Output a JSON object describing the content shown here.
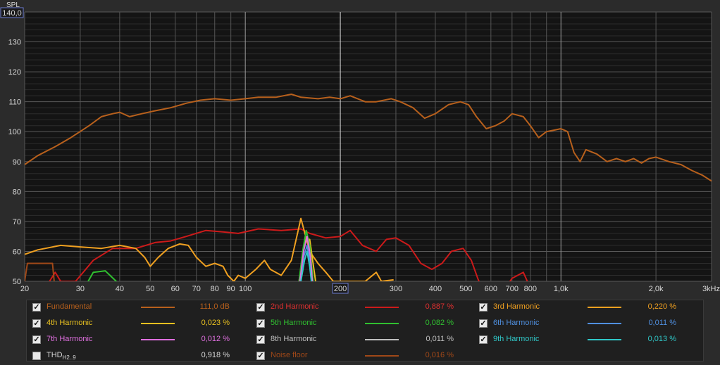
{
  "chart_data": {
    "type": "line",
    "ylabel": "SPL",
    "ymax_box": "140,0",
    "x_scale": "log",
    "xlim": [
      20,
      3000
    ],
    "ylim": [
      50,
      140
    ],
    "y_ticks": [
      "130",
      "120",
      "110",
      "100",
      "90",
      "80",
      "70",
      "60",
      "50"
    ],
    "y_tick_values": [
      130,
      120,
      110,
      100,
      90,
      80,
      70,
      60,
      50
    ],
    "x_ticks": [
      "20",
      "30",
      "40",
      "50",
      "60",
      "70",
      "80",
      "90",
      "100",
      "200",
      "300",
      "400",
      "500",
      "600",
      "700",
      "800",
      "1,0k",
      "2,0k",
      "3kHz"
    ],
    "x_tick_values": [
      20,
      30,
      40,
      50,
      60,
      70,
      80,
      90,
      100,
      200,
      300,
      400,
      500,
      600,
      700,
      800,
      1000,
      2000,
      3000
    ],
    "cursor_label": "200",
    "series": [
      {
        "name": "Fundamental",
        "color": "#b8601c",
        "points": [
          [
            20,
            89
          ],
          [
            22,
            92
          ],
          [
            25,
            95
          ],
          [
            28,
            98
          ],
          [
            32,
            102
          ],
          [
            35,
            105
          ],
          [
            38,
            106
          ],
          [
            40,
            106.5
          ],
          [
            43,
            105
          ],
          [
            47,
            106
          ],
          [
            52,
            107
          ],
          [
            58,
            108
          ],
          [
            65,
            109.5
          ],
          [
            72,
            110.5
          ],
          [
            80,
            111
          ],
          [
            90,
            110.5
          ],
          [
            100,
            111
          ],
          [
            110,
            111.5
          ],
          [
            125,
            111.5
          ],
          [
            140,
            112.5
          ],
          [
            150,
            111.5
          ],
          [
            170,
            111
          ],
          [
            185,
            111.5
          ],
          [
            200,
            111
          ],
          [
            215,
            112
          ],
          [
            240,
            110
          ],
          [
            260,
            110
          ],
          [
            290,
            111
          ],
          [
            310,
            110
          ],
          [
            340,
            108
          ],
          [
            370,
            104.5
          ],
          [
            400,
            106
          ],
          [
            440,
            109
          ],
          [
            480,
            110
          ],
          [
            510,
            109
          ],
          [
            540,
            105
          ],
          [
            580,
            101
          ],
          [
            620,
            102
          ],
          [
            660,
            103.5
          ],
          [
            700,
            106
          ],
          [
            760,
            105
          ],
          [
            800,
            102
          ],
          [
            850,
            98
          ],
          [
            900,
            100
          ],
          [
            950,
            100.5
          ],
          [
            1000,
            101
          ],
          [
            1050,
            100
          ],
          [
            1100,
            93
          ],
          [
            1150,
            90
          ],
          [
            1200,
            94
          ],
          [
            1300,
            92.5
          ],
          [
            1400,
            90
          ],
          [
            1500,
            91
          ],
          [
            1600,
            90
          ],
          [
            1700,
            91
          ],
          [
            1800,
            89.5
          ],
          [
            1900,
            91
          ],
          [
            2000,
            91.5
          ],
          [
            2200,
            90
          ],
          [
            2400,
            89
          ],
          [
            2600,
            87
          ],
          [
            2800,
            85.5
          ],
          [
            3000,
            83.5
          ]
        ]
      },
      {
        "name": "2nd Harmonic",
        "color": "#cc1a1a",
        "points": [
          [
            23,
            47
          ],
          [
            25,
            53
          ],
          [
            26,
            50
          ],
          [
            29,
            50
          ],
          [
            33,
            57
          ],
          [
            38,
            61
          ],
          [
            45,
            61
          ],
          [
            52,
            63
          ],
          [
            58,
            63.5
          ],
          [
            65,
            65
          ],
          [
            75,
            67
          ],
          [
            85,
            66.5
          ],
          [
            95,
            66
          ],
          [
            110,
            67.5
          ],
          [
            130,
            67
          ],
          [
            150,
            67.5
          ],
          [
            160,
            66
          ],
          [
            180,
            64.5
          ],
          [
            200,
            65
          ],
          [
            215,
            67
          ],
          [
            235,
            62
          ],
          [
            260,
            60
          ],
          [
            280,
            64
          ],
          [
            300,
            64.5
          ],
          [
            330,
            62
          ],
          [
            360,
            56
          ],
          [
            390,
            54
          ],
          [
            420,
            56
          ],
          [
            450,
            60
          ],
          [
            490,
            61
          ],
          [
            520,
            57
          ],
          [
            545,
            51
          ],
          [
            560,
            48
          ],
          [
            620,
            49
          ],
          [
            680,
            49
          ],
          [
            700,
            51
          ],
          [
            760,
            53
          ],
          [
            790,
            49
          ]
        ]
      },
      {
        "name": "3rd Harmonic",
        "color": "#f0a020",
        "points": [
          [
            20,
            59
          ],
          [
            22,
            60.5
          ],
          [
            26,
            62
          ],
          [
            30,
            61.5
          ],
          [
            35,
            61
          ],
          [
            40,
            62
          ],
          [
            45,
            61
          ],
          [
            48,
            58
          ],
          [
            50,
            55
          ],
          [
            53,
            58
          ],
          [
            57,
            61
          ],
          [
            62,
            62.5
          ],
          [
            66,
            62
          ],
          [
            70,
            58
          ],
          [
            75,
            55
          ],
          [
            80,
            56
          ],
          [
            85,
            55
          ],
          [
            88,
            52
          ],
          [
            92,
            50
          ],
          [
            95,
            52
          ],
          [
            100,
            51
          ],
          [
            108,
            54
          ],
          [
            115,
            57
          ],
          [
            120,
            54
          ],
          [
            130,
            52
          ],
          [
            140,
            57
          ],
          [
            150,
            71
          ],
          [
            160,
            60
          ],
          [
            170,
            56
          ],
          [
            180,
            53
          ],
          [
            190,
            50
          ],
          [
            240,
            50
          ],
          [
            260,
            53
          ],
          [
            270,
            50
          ],
          [
            295,
            50.5
          ]
        ]
      },
      {
        "name": "4th Harmonic",
        "color": "#e8c020",
        "points": [
          [
            148,
            50
          ],
          [
            152,
            58
          ],
          [
            155,
            64
          ],
          [
            160,
            64
          ],
          [
            163,
            58
          ],
          [
            167,
            50
          ]
        ]
      },
      {
        "name": "5th Harmonic",
        "color": "#30c030",
        "points": [
          [
            31,
            48
          ],
          [
            33,
            53
          ],
          [
            36,
            53.5
          ],
          [
            39,
            50
          ],
          [
            42,
            47
          ]
        ]
      },
      {
        "name": "5th Harmonic peak",
        "color": "#30c030",
        "points": [
          [
            148,
            50
          ],
          [
            152,
            60
          ],
          [
            156,
            67
          ],
          [
            160,
            62
          ],
          [
            164,
            50
          ]
        ]
      },
      {
        "name": "6th Harmonic",
        "color": "#5090e0",
        "points": [
          [
            149,
            50
          ],
          [
            153,
            58
          ],
          [
            157,
            62
          ],
          [
            161,
            56
          ],
          [
            163,
            50
          ]
        ]
      },
      {
        "name": "7th Harmonic",
        "color": "#e070e0",
        "points": [
          [
            149,
            50
          ],
          [
            153,
            60
          ],
          [
            157,
            65
          ],
          [
            161,
            58
          ],
          [
            163,
            50
          ]
        ]
      },
      {
        "name": "9th Harmonic",
        "color": "#30c8c8",
        "points": [
          [
            150,
            50
          ],
          [
            154,
            57
          ],
          [
            157,
            60
          ],
          [
            160,
            55
          ],
          [
            162,
            50
          ]
        ]
      },
      {
        "name": "Noise floor",
        "color": "#a04818",
        "points": [
          [
            20,
            50
          ],
          [
            20.4,
            56
          ],
          [
            24.5,
            56
          ],
          [
            24.8,
            50
          ]
        ]
      }
    ]
  },
  "legend": {
    "items": [
      {
        "label": "Fundamental",
        "value": "111,0 dB",
        "color": "#b8601c",
        "text_color": "#b8601c",
        "checked": "✓"
      },
      {
        "label": "2nd Harmonic",
        "value": "0,887 %",
        "color": "#cc1a1a",
        "text_color": "#e03030",
        "checked": "✓"
      },
      {
        "label": "3rd Harmonic",
        "value": "0,220 %",
        "color": "#f0a020",
        "text_color": "#f0a020",
        "checked": "✓"
      },
      {
        "label": "4th Harmonic",
        "value": "0,023 %",
        "color": "#e8c020",
        "text_color": "#e8c020",
        "checked": "✓"
      },
      {
        "label": "5th Harmonic",
        "value": "0,082 %",
        "color": "#30c030",
        "text_color": "#30c030",
        "checked": "✓"
      },
      {
        "label": "6th Harmonic",
        "value": "0,011 %",
        "color": "#5090e0",
        "text_color": "#5090e0",
        "checked": "✓"
      },
      {
        "label": "7th Harmonic",
        "value": "0,012 %",
        "color": "#e070e0",
        "text_color": "#e070e0",
        "checked": "✓"
      },
      {
        "label": "8th Harmonic",
        "value": "0,011 %",
        "color": "#c0c0c0",
        "text_color": "#c0c0c0",
        "checked": "✓"
      },
      {
        "label": "9th Harmonic",
        "value": "0,013 %",
        "color": "#30c8c8",
        "text_color": "#30c8c8",
        "checked": "✓"
      },
      {
        "label": "THD",
        "label_sub": "H2..9",
        "value": "0,918 %",
        "color": "",
        "text_color": "#d8d8d8",
        "checked": ""
      },
      {
        "label": "Noise floor",
        "value": "0,016 %",
        "color": "#a04818",
        "text_color": "#a04818",
        "checked": "✓"
      }
    ]
  }
}
